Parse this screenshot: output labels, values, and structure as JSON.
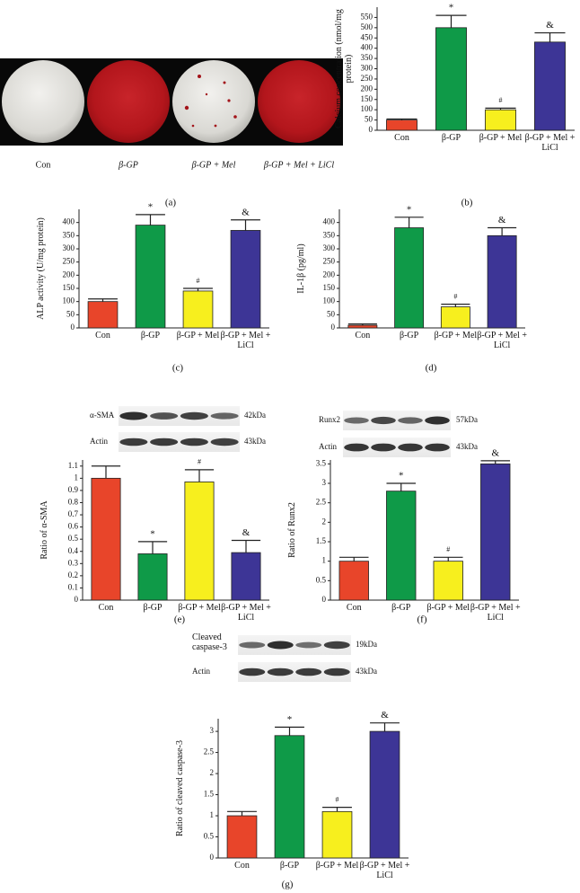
{
  "figure": {
    "photos": {
      "panel": "(a)",
      "captions": [
        "Con",
        "β-GP",
        "β-GP + Mel",
        "β-GP + Mel + LiCl"
      ]
    },
    "blots": [
      {
        "rows": [
          {
            "label": "α-SMA",
            "size": "42kDa"
          },
          {
            "label": "Actin",
            "size": "43kDa"
          }
        ]
      },
      {
        "rows": [
          {
            "label": "Runx2",
            "size": "57kDa"
          },
          {
            "label": "Actin",
            "size": "43kDa"
          }
        ]
      },
      {
        "rows": [
          {
            "label": "Cleaved caspase-3",
            "size": "19kDa"
          },
          {
            "label": "Actin",
            "size": "43kDa"
          }
        ]
      }
    ]
  },
  "chart_data": [
    {
      "type": "bar",
      "panel": "(b)",
      "y_label": "Calcium concentration (nmol/mg protein)",
      "categories": [
        "Con",
        "β-GP",
        "β-GP + Mel",
        "β-GP + Mel + LiCl"
      ],
      "values": [
        50,
        500,
        100,
        430
      ],
      "errors": [
        5,
        60,
        8,
        45
      ],
      "annotations": [
        null,
        "*",
        "#",
        "&"
      ],
      "colors": [
        "#e8452a",
        "#0f9a48",
        "#f7ef1e",
        "#3d3596"
      ],
      "ylim": [
        0,
        600
      ],
      "yticks": [
        0,
        50,
        100,
        150,
        200,
        250,
        300,
        350,
        400,
        450,
        500,
        550
      ]
    },
    {
      "type": "bar",
      "panel": "(c)",
      "y_label": "ALP activity (U/mg protein)",
      "categories": [
        "Con",
        "β-GP",
        "β-GP + Mel",
        "β-GP + Mel + LiCl"
      ],
      "values": [
        100,
        390,
        140,
        370
      ],
      "errors": [
        10,
        40,
        10,
        40
      ],
      "annotations": [
        null,
        "*",
        "#",
        "&"
      ],
      "colors": [
        "#e8452a",
        "#0f9a48",
        "#f7ef1e",
        "#3d3596"
      ],
      "ylim": [
        0,
        450
      ],
      "yticks": [
        0,
        50,
        100,
        150,
        200,
        250,
        300,
        350,
        400
      ]
    },
    {
      "type": "bar",
      "panel": "(d)",
      "y_label": "IL-1β (pg/ml)",
      "categories": [
        "Con",
        "β-GP",
        "β-GP + Mel",
        "β-GP + Mel + LiCl"
      ],
      "values": [
        10,
        380,
        80,
        350
      ],
      "errors": [
        5,
        40,
        10,
        30
      ],
      "annotations": [
        null,
        "*",
        "#",
        "&"
      ],
      "colors": [
        "#e8452a",
        "#0f9a48",
        "#f7ef1e",
        "#3d3596"
      ],
      "ylim": [
        0,
        450
      ],
      "yticks": [
        0,
        50,
        100,
        150,
        200,
        250,
        300,
        350,
        400
      ]
    },
    {
      "type": "bar",
      "panel": "(e)",
      "y_label": "Ratio of α-SMA",
      "categories": [
        "Con",
        "β-GP",
        "β-GP + Mel",
        "β-GP + Mel + LiCl"
      ],
      "values": [
        1.0,
        0.38,
        0.97,
        0.39
      ],
      "errors": [
        0.1,
        0.1,
        0.1,
        0.1
      ],
      "annotations": [
        null,
        "*",
        "#",
        "&"
      ],
      "colors": [
        "#e8452a",
        "#0f9a48",
        "#f7ef1e",
        "#3d3596"
      ],
      "ylim": [
        0,
        1.15
      ],
      "yticks": [
        0,
        0.1,
        0.2,
        0.3,
        0.4,
        0.5,
        0.6,
        0.7,
        0.8,
        0.9,
        1,
        1.1
      ]
    },
    {
      "type": "bar",
      "panel": "(f)",
      "y_label": "Ratio of Runx2",
      "categories": [
        "Con",
        "β-GP",
        "β-GP + Mel",
        "β-GP + Mel + LiCl"
      ],
      "values": [
        1.0,
        2.8,
        1.0,
        3.5
      ],
      "errors": [
        0.1,
        0.2,
        0.1,
        0.08
      ],
      "annotations": [
        null,
        "*",
        "#",
        "&"
      ],
      "colors": [
        "#e8452a",
        "#0f9a48",
        "#f7ef1e",
        "#3d3596"
      ],
      "ylim": [
        0,
        3.6
      ],
      "yticks": [
        0,
        0.5,
        1,
        1.5,
        2,
        2.5,
        3,
        3.5
      ]
    },
    {
      "type": "bar",
      "panel": "(g)",
      "y_label": "Ratio of cleaved caspase-3",
      "categories": [
        "Con",
        "β-GP",
        "β-GP + Mel",
        "β-GP + Mel + LiCl"
      ],
      "values": [
        1.0,
        2.9,
        1.1,
        3.0
      ],
      "errors": [
        0.1,
        0.2,
        0.1,
        0.2
      ],
      "annotations": [
        null,
        "*",
        "#",
        "&"
      ],
      "colors": [
        "#e8452a",
        "#0f9a48",
        "#f7ef1e",
        "#3d3596"
      ],
      "ylim": [
        0,
        3.3
      ],
      "yticks": [
        0,
        0.5,
        1,
        1.5,
        2,
        2.5,
        3
      ]
    }
  ]
}
